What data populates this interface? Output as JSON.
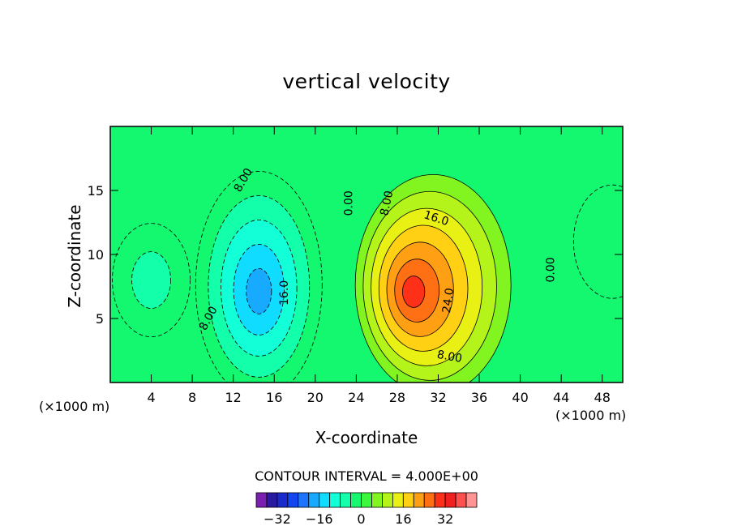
{
  "chart_data": {
    "type": "heatmap",
    "subtype": "filled-contour",
    "title": "vertical velocity",
    "xlabel": "X-coordinate",
    "ylabel": "Z-coordinate",
    "x_unit_label": "(×1000 m)",
    "xlim": [
      0,
      50
    ],
    "ylim": [
      0,
      20
    ],
    "x_ticks": [
      4,
      8,
      12,
      16,
      20,
      24,
      28,
      32,
      36,
      40,
      44,
      48
    ],
    "y_ticks": [
      5,
      10,
      15
    ],
    "contour_interval_text": "CONTOUR INTERVAL = 4.000E+00",
    "contour_interval": 4.0,
    "colorbar": {
      "levels": [
        -36,
        -32,
        -28,
        -24,
        -20,
        -16,
        -12,
        -8,
        -4,
        0,
        4,
        8,
        12,
        16,
        20,
        24,
        28,
        32,
        36
      ],
      "tick_labels": [
        "-32",
        "-16",
        "0",
        "16",
        "32"
      ],
      "tick_values": [
        -32,
        -16,
        0,
        16,
        32
      ],
      "colors": [
        "#7a1fb0",
        "#2a1aa0",
        "#1a2acc",
        "#1446f0",
        "#1c74ff",
        "#18aaff",
        "#10dcff",
        "#12ffd8",
        "#14ffaa",
        "#14f870",
        "#3cf83c",
        "#82f420",
        "#b4f41a",
        "#e8f014",
        "#ffd014",
        "#ffa014",
        "#ff7014",
        "#ff3018",
        "#f02020",
        "#ff5050",
        "#ff9494"
      ]
    },
    "features": [
      {
        "kind": "updraft",
        "x": 31.5,
        "z": 7.0,
        "peak": 26,
        "color": "#ff3018"
      },
      {
        "kind": "downdraft",
        "x": 14.5,
        "z": 7.0,
        "peak": -18,
        "color": "#1c74ff"
      },
      {
        "kind": "weak-downdraft",
        "x": 4,
        "z": 8,
        "peak": -6,
        "color": "#14ffaa"
      },
      {
        "kind": "weak-downdraft",
        "x": 49,
        "z": 11,
        "peak": -4,
        "color": "#14ffaa"
      }
    ],
    "contour_labels": [
      {
        "text": "8.00",
        "x": 13,
        "z": 15.8,
        "angle": -60
      },
      {
        "text": "8.00",
        "x": 9.6,
        "z": 5,
        "angle": -62
      },
      {
        "text": "16.0",
        "x": 17,
        "z": 7,
        "angle": -90
      },
      {
        "text": "0.00",
        "x": 23.3,
        "z": 14,
        "angle": -90
      },
      {
        "text": "8.00",
        "x": 27,
        "z": 14,
        "angle": -78
      },
      {
        "text": "16.0",
        "x": 31.8,
        "z": 12.8,
        "angle": 18
      },
      {
        "text": "24.0",
        "x": 33,
        "z": 6.4,
        "angle": -82
      },
      {
        "text": "8.00",
        "x": 33.1,
        "z": 2,
        "angle": 10
      },
      {
        "text": "0.00",
        "x": 43,
        "z": 8.8,
        "angle": -90
      }
    ]
  }
}
